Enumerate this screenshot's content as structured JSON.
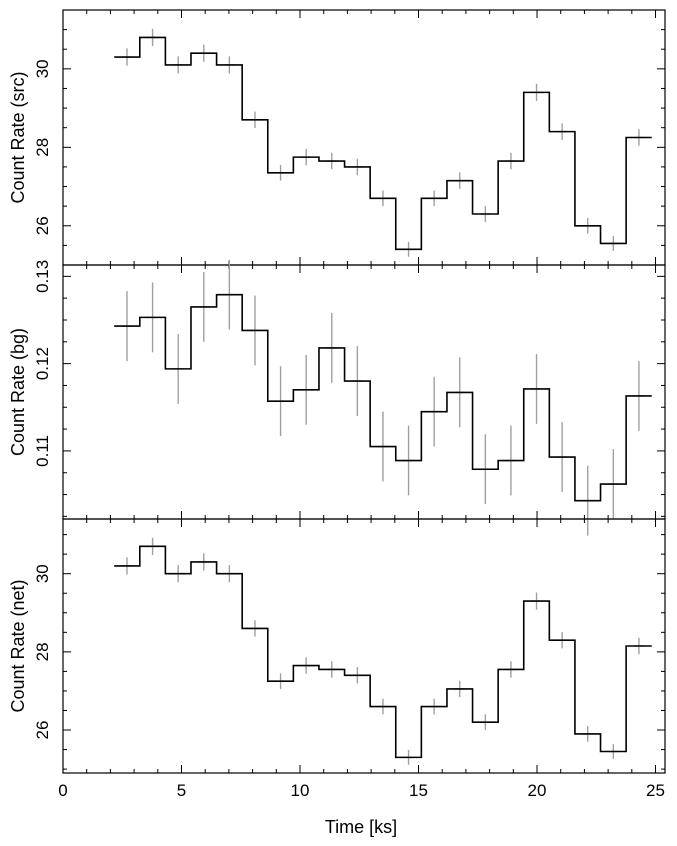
{
  "chart_data": [
    {
      "type": "line",
      "step": true,
      "ylabel": "Count Rate (src)",
      "xlim": [
        0,
        25.4
      ],
      "ylim": [
        25.0,
        31.5
      ],
      "yticks": [
        26,
        28,
        30
      ],
      "ytick_labels": [
        "26",
        "28",
        "30"
      ],
      "xticks": [
        0,
        5,
        10,
        15,
        20,
        25
      ],
      "bin_width": 1.08,
      "x": [
        2.7,
        3.78,
        4.86,
        5.94,
        7.02,
        8.1,
        9.18,
        10.26,
        11.34,
        12.42,
        13.5,
        14.58,
        15.66,
        16.74,
        17.82,
        18.9,
        19.98,
        21.06,
        22.14,
        23.22,
        24.3
      ],
      "y": [
        30.3,
        30.8,
        30.1,
        30.4,
        30.1,
        28.7,
        27.35,
        27.75,
        27.65,
        27.5,
        26.7,
        25.4,
        26.7,
        27.15,
        26.3,
        27.65,
        29.4,
        28.4,
        26.0,
        25.55,
        28.25
      ],
      "yerr": [
        0.22,
        0.22,
        0.22,
        0.22,
        0.22,
        0.21,
        0.2,
        0.21,
        0.21,
        0.21,
        0.2,
        0.19,
        0.2,
        0.21,
        0.2,
        0.21,
        0.22,
        0.21,
        0.2,
        0.19,
        0.21
      ],
      "grid": false,
      "colors": {
        "step": "#000000",
        "errorbar": "#a0a0a0"
      }
    },
    {
      "type": "line",
      "step": true,
      "ylabel": "Count Rate (bg)",
      "xlim": [
        0,
        25.4
      ],
      "ylim": [
        0.1022,
        0.1313
      ],
      "yticks": [
        0.11,
        0.12,
        0.13
      ],
      "ytick_labels": [
        "0.11",
        "0.12",
        "0.13"
      ],
      "xticks": [
        0,
        5,
        10,
        15,
        20,
        25
      ],
      "bin_width": 1.08,
      "x": [
        2.7,
        3.78,
        4.86,
        5.94,
        7.02,
        8.1,
        9.18,
        10.26,
        11.34,
        12.42,
        13.5,
        14.58,
        15.66,
        16.74,
        17.82,
        18.9,
        19.98,
        21.06,
        22.14,
        23.22,
        24.3
      ],
      "y": [
        0.1243,
        0.1253,
        0.1194,
        0.1265,
        0.1279,
        0.1238,
        0.1157,
        0.117,
        0.1218,
        0.118,
        0.1105,
        0.1089,
        0.1145,
        0.1167,
        0.1079,
        0.1089,
        0.1171,
        0.1093,
        0.1043,
        0.1062,
        0.1163
      ],
      "yerr": [
        0.004,
        0.004,
        0.004,
        0.004,
        0.004,
        0.004,
        0.004,
        0.004,
        0.004,
        0.004,
        0.004,
        0.004,
        0.004,
        0.004,
        0.004,
        0.004,
        0.004,
        0.004,
        0.004,
        0.004,
        0.004
      ],
      "grid": false,
      "colors": {
        "step": "#000000",
        "errorbar": "#a0a0a0"
      }
    },
    {
      "type": "line",
      "step": true,
      "ylabel": "Count Rate (net)",
      "xlabel": "Time [ks]",
      "xlim": [
        0,
        25.4
      ],
      "ylim": [
        24.9,
        31.4
      ],
      "yticks": [
        26,
        28,
        30
      ],
      "ytick_labels": [
        "26",
        "28",
        "30"
      ],
      "xticks": [
        0,
        5,
        10,
        15,
        20,
        25
      ],
      "xtick_labels": [
        "0",
        "5",
        "10",
        "15",
        "20",
        "25"
      ],
      "bin_width": 1.08,
      "x": [
        2.7,
        3.78,
        4.86,
        5.94,
        7.02,
        8.1,
        9.18,
        10.26,
        11.34,
        12.42,
        13.5,
        14.58,
        15.66,
        16.74,
        17.82,
        18.9,
        19.98,
        21.06,
        22.14,
        23.22,
        24.3
      ],
      "y": [
        30.2,
        30.7,
        30.0,
        30.3,
        30.0,
        28.6,
        27.25,
        27.65,
        27.55,
        27.4,
        26.6,
        25.3,
        26.6,
        27.05,
        26.2,
        27.55,
        29.3,
        28.3,
        25.9,
        25.45,
        28.15
      ],
      "yerr": [
        0.22,
        0.22,
        0.22,
        0.22,
        0.22,
        0.21,
        0.2,
        0.21,
        0.21,
        0.21,
        0.2,
        0.19,
        0.2,
        0.21,
        0.2,
        0.21,
        0.22,
        0.21,
        0.2,
        0.19,
        0.21
      ],
      "grid": false,
      "colors": {
        "step": "#000000",
        "errorbar": "#a0a0a0"
      }
    }
  ]
}
